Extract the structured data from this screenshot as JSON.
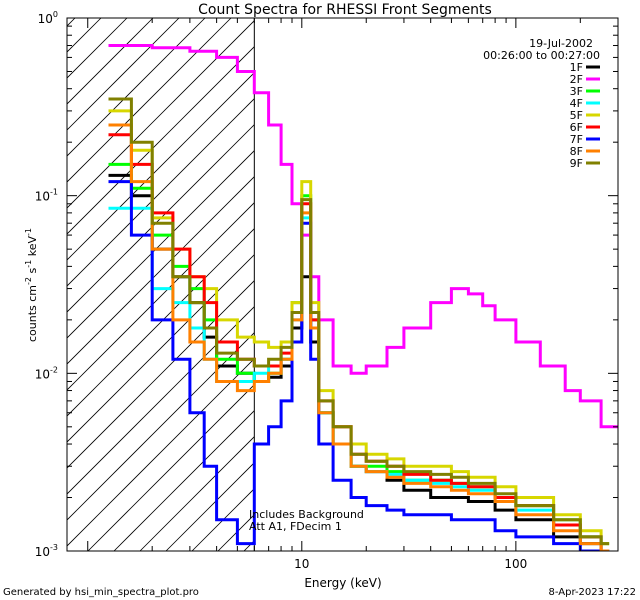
{
  "chart_data": {
    "type": "line",
    "title": "Count Spectra for RHESSI Front Segments",
    "xlabel": "Energy (keV)",
    "ylabel_main": "counts cm",
    "ylabel_exp1": "-2",
    "ylabel_mid": " s",
    "ylabel_exp2": "-1",
    "ylabel_end": " keV",
    "ylabel_exp3": "-1",
    "xscale": "log",
    "yscale": "log",
    "xlim": [
      0.8,
      300
    ],
    "ylim": [
      0.001,
      1
    ],
    "x_ticks": [
      {
        "value": 10,
        "label": "10"
      },
      {
        "value": 100,
        "label": "100"
      }
    ],
    "y_ticks": [
      {
        "value": 1,
        "mant": "10",
        "exp": "0"
      },
      {
        "value": 0.1,
        "mant": "10",
        "exp": "-1"
      },
      {
        "value": 0.01,
        "mant": "10",
        "exp": "-2"
      },
      {
        "value": 0.001,
        "mant": "10",
        "exp": "-3"
      }
    ],
    "date": "19-Jul-2002",
    "time_range": "00:26:00 to 00:27:00",
    "annotation_line1": "Includes Background",
    "annotation_line2": "Att A1, FDecim 1",
    "hatched_region_keV": [
      0.8,
      6
    ],
    "cutoff_line_keV": 6,
    "series": [
      {
        "name": "1F",
        "color": "#000000",
        "values": [
          [
            1.25,
            0.13
          ],
          [
            1.6,
            0.1
          ],
          [
            2.0,
            0.05
          ],
          [
            2.5,
            0.035
          ],
          [
            3.0,
            0.025
          ],
          [
            3.5,
            0.016
          ],
          [
            4.0,
            0.011
          ],
          [
            5.0,
            0.01
          ],
          [
            6.0,
            0.009
          ],
          [
            7.0,
            0.0095
          ],
          [
            8.0,
            0.011
          ],
          [
            9.0,
            0.018
          ],
          [
            10.0,
            0.035
          ],
          [
            11.0,
            0.015
          ],
          [
            12.0,
            0.006
          ],
          [
            14.0,
            0.004
          ],
          [
            17.0,
            0.003
          ],
          [
            20.0,
            0.0028
          ],
          [
            25.0,
            0.0025
          ],
          [
            30.0,
            0.0022
          ],
          [
            40.0,
            0.002
          ],
          [
            50.0,
            0.002
          ],
          [
            60.0,
            0.0019
          ],
          [
            80.0,
            0.0017
          ],
          [
            100.0,
            0.0015
          ],
          [
            150.0,
            0.0012
          ],
          [
            200.0,
            0.0011
          ],
          [
            250.0,
            0.001
          ]
        ]
      },
      {
        "name": "2F",
        "color": "#ff00ff",
        "values": [
          [
            1.25,
            0.7
          ],
          [
            1.6,
            0.7
          ],
          [
            2.0,
            0.68
          ],
          [
            3.0,
            0.65
          ],
          [
            4.0,
            0.6
          ],
          [
            5.0,
            0.5
          ],
          [
            6.0,
            0.38
          ],
          [
            7.0,
            0.25
          ],
          [
            8.0,
            0.15
          ],
          [
            9.0,
            0.09
          ],
          [
            10.0,
            0.06
          ],
          [
            11.0,
            0.035
          ],
          [
            12.0,
            0.02
          ],
          [
            14.0,
            0.011
          ],
          [
            17.0,
            0.01
          ],
          [
            20.0,
            0.011
          ],
          [
            25.0,
            0.014
          ],
          [
            30.0,
            0.018
          ],
          [
            40.0,
            0.025
          ],
          [
            50.0,
            0.03
          ],
          [
            60.0,
            0.028
          ],
          [
            70.0,
            0.024
          ],
          [
            80.0,
            0.02
          ],
          [
            100.0,
            0.015
          ],
          [
            130.0,
            0.011
          ],
          [
            170.0,
            0.008
          ],
          [
            200.0,
            0.007
          ],
          [
            250.0,
            0.005
          ],
          [
            300.0,
            0.005
          ]
        ]
      },
      {
        "name": "3F",
        "color": "#00ff00",
        "values": [
          [
            1.25,
            0.15
          ],
          [
            1.6,
            0.11
          ],
          [
            2.0,
            0.06
          ],
          [
            2.5,
            0.04
          ],
          [
            3.0,
            0.03
          ],
          [
            3.5,
            0.02
          ],
          [
            4.0,
            0.012
          ],
          [
            5.0,
            0.01
          ],
          [
            6.0,
            0.009
          ],
          [
            7.0,
            0.01
          ],
          [
            8.0,
            0.012
          ],
          [
            9.0,
            0.025
          ],
          [
            10.0,
            0.1
          ],
          [
            11.0,
            0.02
          ],
          [
            12.0,
            0.006
          ],
          [
            14.0,
            0.004
          ],
          [
            17.0,
            0.003
          ],
          [
            20.0,
            0.003
          ],
          [
            25.0,
            0.0028
          ],
          [
            30.0,
            0.0025
          ],
          [
            40.0,
            0.0025
          ],
          [
            50.0,
            0.0024
          ],
          [
            60.0,
            0.0023
          ],
          [
            80.0,
            0.002
          ],
          [
            100.0,
            0.0018
          ],
          [
            150.0,
            0.0015
          ],
          [
            200.0,
            0.0012
          ],
          [
            250.0,
            0.0011
          ]
        ]
      },
      {
        "name": "4F",
        "color": "#00ffff",
        "values": [
          [
            1.25,
            0.085
          ],
          [
            1.6,
            0.085
          ],
          [
            2.0,
            0.03
          ],
          [
            2.5,
            0.025
          ],
          [
            3.0,
            0.018
          ],
          [
            3.5,
            0.012
          ],
          [
            4.0,
            0.009
          ],
          [
            5.0,
            0.009
          ],
          [
            6.0,
            0.01
          ],
          [
            7.0,
            0.011
          ],
          [
            8.0,
            0.012
          ],
          [
            9.0,
            0.02
          ],
          [
            10.0,
            0.075
          ],
          [
            11.0,
            0.018
          ],
          [
            12.0,
            0.006
          ],
          [
            14.0,
            0.004
          ],
          [
            17.0,
            0.003
          ],
          [
            20.0,
            0.0028
          ],
          [
            25.0,
            0.0027
          ],
          [
            30.0,
            0.0025
          ],
          [
            40.0,
            0.0024
          ],
          [
            50.0,
            0.0023
          ],
          [
            60.0,
            0.0022
          ],
          [
            80.0,
            0.0019
          ],
          [
            100.0,
            0.0017
          ],
          [
            150.0,
            0.0014
          ],
          [
            200.0,
            0.0012
          ],
          [
            250.0,
            0.001
          ]
        ]
      },
      {
        "name": "5F",
        "color": "#d7d700",
        "values": [
          [
            1.25,
            0.3
          ],
          [
            1.6,
            0.18
          ],
          [
            2.0,
            0.075
          ],
          [
            2.5,
            0.05
          ],
          [
            3.0,
            0.035
          ],
          [
            3.5,
            0.03
          ],
          [
            4.0,
            0.02
          ],
          [
            5.0,
            0.016
          ],
          [
            6.0,
            0.015
          ],
          [
            7.0,
            0.014
          ],
          [
            8.0,
            0.015
          ],
          [
            9.0,
            0.025
          ],
          [
            10.0,
            0.12
          ],
          [
            11.0,
            0.025
          ],
          [
            12.0,
            0.008
          ],
          [
            14.0,
            0.005
          ],
          [
            17.0,
            0.004
          ],
          [
            20.0,
            0.0035
          ],
          [
            25.0,
            0.0033
          ],
          [
            30.0,
            0.003
          ],
          [
            40.0,
            0.003
          ],
          [
            50.0,
            0.0028
          ],
          [
            60.0,
            0.0026
          ],
          [
            80.0,
            0.0023
          ],
          [
            100.0,
            0.002
          ],
          [
            150.0,
            0.0016
          ],
          [
            200.0,
            0.0013
          ],
          [
            250.0,
            0.0011
          ]
        ]
      },
      {
        "name": "6F",
        "color": "#ff0000",
        "values": [
          [
            1.25,
            0.22
          ],
          [
            1.6,
            0.15
          ],
          [
            2.0,
            0.08
          ],
          [
            2.5,
            0.05
          ],
          [
            3.0,
            0.035
          ],
          [
            3.5,
            0.025
          ],
          [
            4.0,
            0.015
          ],
          [
            5.0,
            0.012
          ],
          [
            6.0,
            0.011
          ],
          [
            7.0,
            0.011
          ],
          [
            8.0,
            0.013
          ],
          [
            9.0,
            0.022
          ],
          [
            10.0,
            0.09
          ],
          [
            11.0,
            0.02
          ],
          [
            12.0,
            0.007
          ],
          [
            14.0,
            0.005
          ],
          [
            17.0,
            0.0035
          ],
          [
            20.0,
            0.0032
          ],
          [
            25.0,
            0.003
          ],
          [
            30.0,
            0.0027
          ],
          [
            40.0,
            0.0025
          ],
          [
            50.0,
            0.0024
          ],
          [
            60.0,
            0.0023
          ],
          [
            80.0,
            0.002
          ],
          [
            100.0,
            0.0018
          ],
          [
            150.0,
            0.0014
          ],
          [
            200.0,
            0.0012
          ],
          [
            250.0,
            0.001
          ]
        ]
      },
      {
        "name": "7F",
        "color": "#0000ff",
        "values": [
          [
            1.25,
            0.12
          ],
          [
            1.6,
            0.06
          ],
          [
            2.0,
            0.02
          ],
          [
            2.5,
            0.012
          ],
          [
            3.0,
            0.006
          ],
          [
            3.5,
            0.003
          ],
          [
            4.0,
            0.0015
          ],
          [
            5.0,
            0.0011
          ],
          [
            6.0,
            0.004
          ],
          [
            7.0,
            0.005
          ],
          [
            8.0,
            0.007
          ],
          [
            9.0,
            0.015
          ],
          [
            10.0,
            0.07
          ],
          [
            11.0,
            0.012
          ],
          [
            12.0,
            0.004
          ],
          [
            14.0,
            0.0025
          ],
          [
            17.0,
            0.002
          ],
          [
            20.0,
            0.0018
          ],
          [
            25.0,
            0.0017
          ],
          [
            30.0,
            0.0016
          ],
          [
            40.0,
            0.0016
          ],
          [
            50.0,
            0.0015
          ],
          [
            60.0,
            0.0015
          ],
          [
            80.0,
            0.0013
          ],
          [
            100.0,
            0.0012
          ],
          [
            150.0,
            0.0011
          ],
          [
            200.0,
            0.001
          ],
          [
            250.0,
            0.001
          ]
        ]
      },
      {
        "name": "8F",
        "color": "#ff8000",
        "values": [
          [
            1.25,
            0.25
          ],
          [
            1.6,
            0.12
          ],
          [
            2.0,
            0.05
          ],
          [
            2.5,
            0.02
          ],
          [
            3.0,
            0.015
          ],
          [
            3.5,
            0.012
          ],
          [
            4.0,
            0.009
          ],
          [
            5.0,
            0.008
          ],
          [
            6.0,
            0.009
          ],
          [
            7.0,
            0.01
          ],
          [
            8.0,
            0.012
          ],
          [
            9.0,
            0.02
          ],
          [
            10.0,
            0.08
          ],
          [
            11.0,
            0.018
          ],
          [
            12.0,
            0.006
          ],
          [
            14.0,
            0.004
          ],
          [
            17.0,
            0.003
          ],
          [
            20.0,
            0.0028
          ],
          [
            25.0,
            0.0026
          ],
          [
            30.0,
            0.0024
          ],
          [
            40.0,
            0.0023
          ],
          [
            50.0,
            0.0022
          ],
          [
            60.0,
            0.0021
          ],
          [
            80.0,
            0.0019
          ],
          [
            100.0,
            0.0016
          ],
          [
            150.0,
            0.0013
          ],
          [
            200.0,
            0.0011
          ],
          [
            250.0,
            0.001
          ]
        ]
      },
      {
        "name": "9F",
        "color": "#808000",
        "values": [
          [
            1.25,
            0.35
          ],
          [
            1.6,
            0.2
          ],
          [
            2.0,
            0.07
          ],
          [
            2.5,
            0.035
          ],
          [
            3.0,
            0.025
          ],
          [
            3.5,
            0.018
          ],
          [
            4.0,
            0.013
          ],
          [
            5.0,
            0.012
          ],
          [
            6.0,
            0.011
          ],
          [
            7.0,
            0.012
          ],
          [
            8.0,
            0.014
          ],
          [
            9.0,
            0.022
          ],
          [
            10.0,
            0.095
          ],
          [
            11.0,
            0.022
          ],
          [
            12.0,
            0.007
          ],
          [
            14.0,
            0.005
          ],
          [
            17.0,
            0.0035
          ],
          [
            20.0,
            0.0032
          ],
          [
            25.0,
            0.003
          ],
          [
            30.0,
            0.0028
          ],
          [
            40.0,
            0.0027
          ],
          [
            50.0,
            0.0026
          ],
          [
            60.0,
            0.0024
          ],
          [
            80.0,
            0.0021
          ],
          [
            100.0,
            0.0018
          ],
          [
            150.0,
            0.0015
          ],
          [
            200.0,
            0.0012
          ],
          [
            250.0,
            0.0011
          ]
        ]
      }
    ]
  },
  "footer": {
    "generated_by": "Generated by hsi_min_spectra_plot.pro",
    "timestamp": "8-Apr-2023 17:22"
  }
}
